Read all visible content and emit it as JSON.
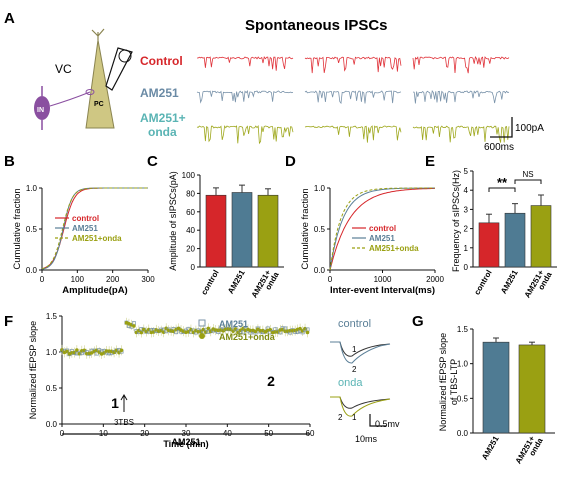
{
  "colors": {
    "control": "#d6262a",
    "am251": "#5b7f97",
    "onda": "#9aa012",
    "red": "#e0333a",
    "blue": "#7a93aa",
    "olive": "#9fa81e",
    "steel": "#4f7b93",
    "pc": "#c9c27a",
    "in": "#8a4fa0"
  },
  "panelA": {
    "letter": "A",
    "title": "Spontaneous IPSCs",
    "vc": "VC",
    "in_label": "IN",
    "pc_label": "PC",
    "rows": [
      {
        "label": "Control",
        "color": "#d6262a"
      },
      {
        "label": "AM251",
        "color": "#6a8aa5"
      },
      {
        "label": "AM251+",
        "label2": "onda",
        "color": "#5ab4b4"
      }
    ],
    "scale_y": "100pA",
    "scale_x": "600ms"
  },
  "panelB": {
    "letter": "B",
    "ylabel": "Cumulative fraction",
    "xlabel": "Amplitude(pA)",
    "xticks": [
      "0",
      "100",
      "200",
      "300"
    ],
    "yticks": [
      "0.0",
      "0.5",
      "1.0"
    ],
    "legend": [
      "control",
      "AM251",
      "AM251+onda"
    ]
  },
  "panelC": {
    "letter": "C",
    "ylabel": "Amplitude of sIPSCs(pA)",
    "yticks": [
      "0",
      "20",
      "40",
      "60",
      "80",
      "100"
    ],
    "bars": [
      {
        "name": "control",
        "value": 78,
        "err": 8
      },
      {
        "name": "AM251",
        "value": 81,
        "err": 8
      },
      {
        "name": "AM251+",
        "name2": "onda",
        "value": 78,
        "err": 7
      }
    ]
  },
  "panelD": {
    "letter": "D",
    "ylabel": "Cumulative fraction",
    "xlabel": "Inter-event Interval(ms)",
    "xticks": [
      "0",
      "1000",
      "2000"
    ],
    "yticks": [
      "0.0",
      "0.5",
      "1.0"
    ],
    "legend": [
      "control",
      "AM251",
      "AM251+onda"
    ]
  },
  "panelE": {
    "letter": "E",
    "ylabel": "Frequency of sIPSCs(Hz)",
    "yticks": [
      "0",
      "1",
      "2",
      "3",
      "4",
      "5"
    ],
    "bars": [
      {
        "name": "control",
        "value": 2.3,
        "err": 0.45
      },
      {
        "name": "AM251",
        "value": 2.8,
        "err": 0.5
      },
      {
        "name": "AM251+",
        "name2": "onda",
        "value": 3.2,
        "err": 0.55
      }
    ],
    "sig": "**",
    "ns": "NS"
  },
  "panelF": {
    "letter": "F",
    "ylabel": "Normalized fEPSP slope",
    "xlabel": "Time (min)",
    "xticks": [
      "0",
      "10",
      "20",
      "30",
      "40",
      "50",
      "60"
    ],
    "yticks": [
      "0.0",
      "0.5",
      "1.0",
      "1.5"
    ],
    "legend": [
      "AM251",
      "AM251+onda"
    ],
    "mark1": "1",
    "mark2": "2",
    "stim": "3TBS",
    "bar_label": "AM251",
    "trace_control": "control",
    "trace_onda": "onda",
    "trace1": "1",
    "trace2": "2",
    "scale_y": "0.5mv",
    "scale_x": "10ms"
  },
  "panelG": {
    "letter": "G",
    "ylabel": "Normalized fEPSP slope",
    "ylabel2": "of TBS-LTP",
    "yticks": [
      "0.0",
      "0.5",
      "1.0",
      "1.5"
    ],
    "bars": [
      {
        "name": "AM251",
        "value": 1.31,
        "err": 0.06
      },
      {
        "name": "AM251+",
        "name2": "onda",
        "value": 1.27,
        "err": 0.04
      }
    ]
  }
}
